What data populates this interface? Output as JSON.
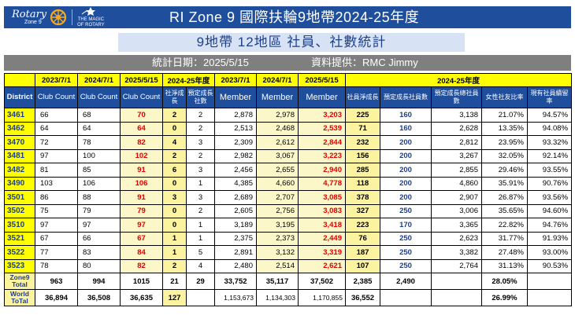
{
  "banner": {
    "logo_word": "Rotary",
    "logo_zone": "Zone 9",
    "magic_line1": "THE MAGIC",
    "magic_line2": "OF ROTARY",
    "title": "RI Zone 9   國際扶輪9地帶2024-25年度"
  },
  "subtitle": "9地帶 12地區 社員、社數統計",
  "dateline": {
    "date_text": "統計日期：2025/5/15",
    "source_text": "資料提供：RMC Jimmy"
  },
  "table": {
    "header_top": [
      "",
      "2023/7/1",
      "2024/7/1",
      "2025/5/15",
      "2024-25年度",
      "2023/7/1",
      "2024/7/1",
      "2025/5/15",
      "2024-25年度"
    ],
    "header_bottom": [
      "District",
      "Club Count",
      "Club Count",
      "Club Count",
      "社淨成長",
      "預定成長社數",
      "Member",
      "Member",
      "Member",
      "社員淨成長",
      "預定成長社員數",
      "預定成長總社員數",
      "女性社友比率",
      "現有社員續留率"
    ],
    "rows": [
      {
        "district": "3461",
        "c23": "66",
        "c24": "68",
        "c25": "70",
        "club_growth": "2",
        "club_goal": "2",
        "m23": "2,878",
        "m24": "2,978",
        "m25": "3,203",
        "member_growth": "225",
        "member_goal": "160",
        "total_goal": "3,138",
        "female": "21.07%",
        "retention": "94.57%"
      },
      {
        "district": "3462",
        "c23": "64",
        "c24": "64",
        "c25": "64",
        "club_growth": "0",
        "club_goal": "2",
        "m23": "2,513",
        "m24": "2,468",
        "m25": "2,539",
        "member_growth": "71",
        "member_goal": "160",
        "total_goal": "2,628",
        "female": "13.35%",
        "retention": "94.08%"
      },
      {
        "district": "3470",
        "c23": "72",
        "c24": "78",
        "c25": "82",
        "club_growth": "4",
        "club_goal": "3",
        "m23": "2,309",
        "m24": "2,612",
        "m25": "2,844",
        "member_growth": "232",
        "member_goal": "200",
        "total_goal": "2,812",
        "female": "23.95%",
        "retention": "93.32%"
      },
      {
        "district": "3481",
        "c23": "97",
        "c24": "100",
        "c25": "102",
        "club_growth": "2",
        "club_goal": "2",
        "m23": "2,982",
        "m24": "3,067",
        "m25": "3,223",
        "member_growth": "156",
        "member_goal": "200",
        "total_goal": "3,267",
        "female": "32.05%",
        "retention": "92.14%"
      },
      {
        "district": "3482",
        "c23": "81",
        "c24": "85",
        "c25": "91",
        "club_growth": "6",
        "club_goal": "3",
        "m23": "2,456",
        "m24": "2,655",
        "m25": "2,940",
        "member_growth": "285",
        "member_goal": "200",
        "total_goal": "2,855",
        "female": "29.46%",
        "retention": "93.55%"
      },
      {
        "district": "3490",
        "c23": "103",
        "c24": "106",
        "c25": "106",
        "club_growth": "0",
        "club_goal": "1",
        "m23": "4,385",
        "m24": "4,660",
        "m25": "4,778",
        "member_growth": "118",
        "member_goal": "200",
        "total_goal": "4,860",
        "female": "35.91%",
        "retention": "90.76%"
      },
      {
        "district": "3501",
        "c23": "86",
        "c24": "88",
        "c25": "91",
        "club_growth": "3",
        "club_goal": "3",
        "m23": "2,689",
        "m24": "2,707",
        "m25": "3,085",
        "member_growth": "378",
        "member_goal": "200",
        "total_goal": "2,907",
        "female": "26.87%",
        "retention": "93.56%"
      },
      {
        "district": "3502",
        "c23": "75",
        "c24": "79",
        "c25": "79",
        "club_growth": "0",
        "club_goal": "2",
        "m23": "2,605",
        "m24": "2,756",
        "m25": "3,083",
        "member_growth": "327",
        "member_goal": "250",
        "total_goal": "3,006",
        "female": "35.65%",
        "retention": "94.60%"
      },
      {
        "district": "3510",
        "c23": "97",
        "c24": "97",
        "c25": "97",
        "club_growth": "0",
        "club_goal": "1",
        "m23": "3,189",
        "m24": "3,195",
        "m25": "3,418",
        "member_growth": "223",
        "member_goal": "170",
        "total_goal": "3,365",
        "female": "22.82%",
        "retention": "94.76%"
      },
      {
        "district": "3521",
        "c23": "67",
        "c24": "66",
        "c25": "67",
        "club_growth": "1",
        "club_goal": "1",
        "m23": "2,375",
        "m24": "2,373",
        "m25": "2,449",
        "member_growth": "76",
        "member_goal": "250",
        "total_goal": "2,623",
        "female": "31.77%",
        "retention": "91.93%"
      },
      {
        "district": "3522",
        "c23": "77",
        "c24": "83",
        "c25": "84",
        "club_growth": "1",
        "club_goal": "5",
        "m23": "2,891",
        "m24": "3,132",
        "m25": "3,319",
        "member_growth": "187",
        "member_goal": "250",
        "total_goal": "3,382",
        "female": "27.48%",
        "retention": "93.00%"
      },
      {
        "district": "3523",
        "c23": "78",
        "c24": "80",
        "c25": "82",
        "club_growth": "2",
        "club_goal": "4",
        "m23": "2,480",
        "m24": "2,514",
        "m25": "2,621",
        "member_growth": "107",
        "member_goal": "250",
        "total_goal": "2,764",
        "female": "31.13%",
        "retention": "90.53%"
      }
    ],
    "zone_total": {
      "label": "Zone9 Total",
      "c23": "963",
      "c24": "994",
      "c25": "1015",
      "club_growth": "21",
      "club_goal": "29",
      "m23": "33,752",
      "m24": "35,117",
      "m25": "37,502",
      "member_growth": "2,385",
      "member_goal": "2,490",
      "total_goal": "",
      "female": "28.05%",
      "retention": ""
    },
    "world_total": {
      "label": "World ToTal",
      "c23": "36,894",
      "c24": "36,508",
      "c25": "36,635",
      "club_growth": "127",
      "club_goal": "",
      "m23": "1,153,673",
      "m24": "1,134,303",
      "m25": "1,170,855",
      "member_growth": "36,552",
      "member_goal": "",
      "total_goal": "",
      "female": "26.99%",
      "retention": ""
    }
  }
}
